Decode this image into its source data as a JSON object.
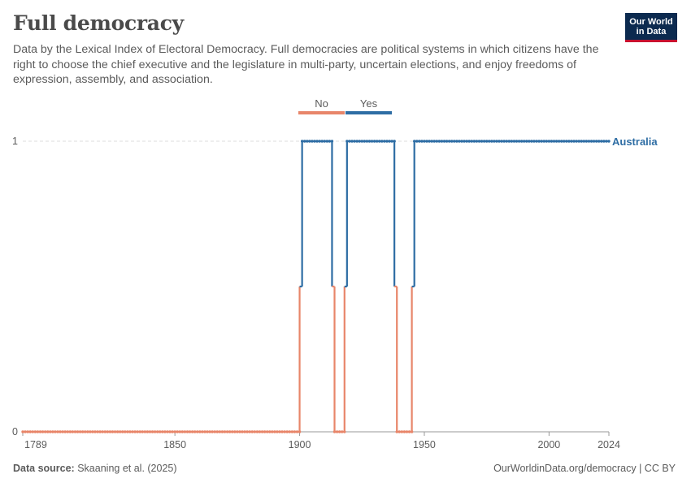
{
  "header": {
    "title": "Full democracy",
    "subtitle": "Data by the Lexical Index of Electoral Democracy. Full democracies are political systems in which citizens have the right to choose the chief executive and the legislature in multi-party, uncertain elections, and enjoy freedoms of expression, assembly, and association."
  },
  "logo": {
    "line1": "Our World",
    "line2": "in Data",
    "bg": "#0c2a4f",
    "accent": "#c8102e"
  },
  "footer": {
    "source_label": "Data source:",
    "source_text": "Skaaning et al. (2025)",
    "url": "OurWorldinData.org/democracy | CC BY"
  },
  "colors": {
    "no": "#e8866a",
    "yes": "#2e6da4",
    "grid": "#dddddd",
    "axis": "#999999"
  },
  "chart_data": {
    "type": "line",
    "title": "Full democracy",
    "x_ticks": [
      1789,
      1850,
      1900,
      1950,
      2000,
      2024
    ],
    "y_ticks": [
      0,
      1
    ],
    "xlim": [
      1789,
      2024
    ],
    "ylim": [
      0,
      1
    ],
    "legend": {
      "placement": "top",
      "entries": [
        {
          "label": "No",
          "color": "#e8866a"
        },
        {
          "label": "Yes",
          "color": "#2e6da4"
        }
      ]
    },
    "series": [
      {
        "name": "Australia",
        "color": "#2e6da4",
        "segments": [
          {
            "x_start": 1789,
            "x_end": 1900,
            "value": 0
          },
          {
            "x_start": 1901,
            "x_end": 1913,
            "value": 1
          },
          {
            "x_start": 1914,
            "x_end": 1918,
            "value": 0
          },
          {
            "x_start": 1919,
            "x_end": 1938,
            "value": 1
          },
          {
            "x_start": 1939,
            "x_end": 1945,
            "value": 0
          },
          {
            "x_start": 1946,
            "x_end": 2024,
            "value": 1
          }
        ]
      }
    ]
  }
}
